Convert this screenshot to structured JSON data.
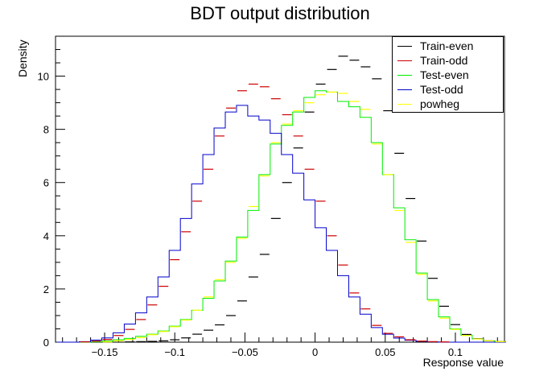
{
  "chart_data": {
    "type": "histogram",
    "title": "BDT output distribution",
    "xlabel": "Response value",
    "ylabel": "Density",
    "xlim": [
      -0.185,
      0.135
    ],
    "ylim": [
      0,
      11.5
    ],
    "xticks": [
      -0.15,
      -0.1,
      -0.05,
      0,
      0.05,
      0.1
    ],
    "xtick_labels": [
      "−0.15",
      "−0.1",
      "−0.05",
      "0",
      "0.05",
      "0.1"
    ],
    "yticks": [
      0,
      2,
      4,
      6,
      8,
      10
    ],
    "ytick_labels": [
      "0",
      "2",
      "4",
      "6",
      "8",
      "10"
    ],
    "bin_width": 0.008,
    "bin_centers": [
      -0.18,
      -0.172,
      -0.164,
      -0.156,
      -0.148,
      -0.14,
      -0.132,
      -0.124,
      -0.116,
      -0.108,
      -0.1,
      -0.092,
      -0.084,
      -0.076,
      -0.068,
      -0.06,
      -0.052,
      -0.044,
      -0.036,
      -0.028,
      -0.02,
      -0.012,
      -0.004,
      0.004,
      0.012,
      0.02,
      0.028,
      0.036,
      0.044,
      0.052,
      0.06,
      0.068,
      0.076,
      0.084,
      0.092,
      0.1,
      0.108,
      0.116,
      0.124,
      0.132
    ],
    "legend_position": "top-right",
    "series": [
      {
        "name": "Train-even",
        "style": "points",
        "color": "#000000",
        "values": [
          0,
          0,
          0,
          0,
          0,
          0,
          0.01,
          0.02,
          0.03,
          0.05,
          0.09,
          0.16,
          0.3,
          0.45,
          0.65,
          1.0,
          1.55,
          2.45,
          3.3,
          4.65,
          6.0,
          7.3,
          8.65,
          9.7,
          10.25,
          10.75,
          10.6,
          10.35,
          9.9,
          8.7,
          7.1,
          5.4,
          3.8,
          2.4,
          1.35,
          0.66,
          0.29,
          0.13,
          0.05,
          0.02
        ]
      },
      {
        "name": "Train-odd",
        "style": "points",
        "color": "#cc0000",
        "values": [
          0,
          0,
          0.01,
          0.04,
          0.1,
          0.25,
          0.48,
          0.85,
          1.4,
          2.1,
          3.1,
          4.15,
          5.3,
          6.5,
          7.75,
          8.8,
          9.45,
          9.7,
          9.6,
          9.15,
          8.55,
          7.75,
          6.5,
          5.3,
          4.0,
          2.9,
          1.85,
          1.25,
          0.63,
          0.33,
          0.2,
          0.09,
          0.04,
          0.02,
          0.01,
          0,
          0,
          0,
          0,
          0
        ]
      },
      {
        "name": "Test-even",
        "style": "step",
        "color": "#00ee00",
        "values": [
          0,
          0,
          0,
          0.01,
          0.04,
          0.09,
          0.14,
          0.22,
          0.3,
          0.42,
          0.6,
          0.85,
          1.2,
          1.65,
          2.3,
          3.05,
          3.95,
          4.95,
          6.3,
          7.45,
          8.15,
          8.65,
          9.2,
          9.45,
          9.4,
          9.05,
          8.85,
          8.45,
          7.5,
          6.3,
          5.05,
          3.85,
          2.6,
          1.6,
          0.95,
          0.5,
          0.26,
          0.12,
          0.05,
          0.02
        ]
      },
      {
        "name": "Test-odd",
        "style": "step",
        "color": "#0000cc",
        "values": [
          0,
          0,
          0.02,
          0.08,
          0.16,
          0.35,
          0.68,
          1.1,
          1.7,
          2.45,
          3.45,
          4.65,
          5.95,
          7.05,
          8.05,
          8.65,
          8.9,
          8.5,
          8.35,
          7.85,
          7.05,
          6.35,
          5.35,
          4.3,
          3.45,
          2.5,
          1.7,
          1.05,
          0.55,
          0.3,
          0.15,
          0.07,
          0.03,
          0.01,
          0,
          0,
          0,
          0,
          0,
          0
        ]
      },
      {
        "name": "powheg",
        "style": "points",
        "color": "#ffff00",
        "values": [
          0,
          0,
          0,
          0,
          0.01,
          0.05,
          0.1,
          0.17,
          0.28,
          0.4,
          0.58,
          0.83,
          1.2,
          1.7,
          2.35,
          3.0,
          3.9,
          5.1,
          6.25,
          7.5,
          8.2,
          8.7,
          9.0,
          9.3,
          9.4,
          9.35,
          9.05,
          8.75,
          7.45,
          6.3,
          4.95,
          3.75,
          2.55,
          1.55,
          0.9,
          0.48,
          0.25,
          0.12,
          0.05,
          0.02
        ]
      }
    ]
  }
}
